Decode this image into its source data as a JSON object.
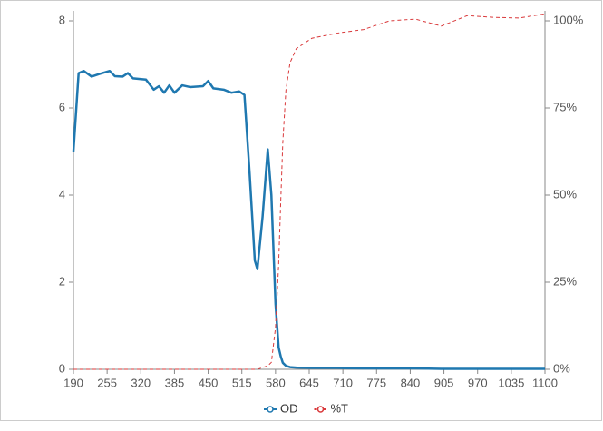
{
  "chart_data": {
    "type": "line",
    "x": [
      190,
      200,
      210,
      225,
      240,
      260,
      270,
      285,
      295,
      305,
      330,
      345,
      355,
      365,
      375,
      385,
      400,
      415,
      440,
      450,
      460,
      480,
      495,
      510,
      520,
      530,
      540,
      545,
      555,
      565,
      572,
      580,
      586,
      590,
      594,
      600,
      608,
      620,
      650,
      700,
      750,
      800,
      850,
      900,
      950,
      1000,
      1050,
      1100
    ],
    "xlim": [
      190,
      1100
    ],
    "xticks": [
      190,
      255,
      320,
      385,
      450,
      515,
      580,
      645,
      710,
      775,
      840,
      905,
      970,
      1035,
      1100
    ],
    "ylim": [
      0,
      8
    ],
    "yticks": [
      0,
      2,
      4,
      6,
      8
    ],
    "y2lim": [
      0,
      100
    ],
    "y2ticks": [
      {
        "value": 0,
        "label": "0%"
      },
      {
        "value": 25,
        "label": "25%"
      },
      {
        "value": 50,
        "label": "50%"
      },
      {
        "value": 75,
        "label": "75%"
      },
      {
        "value": 100,
        "label": "100%"
      }
    ],
    "series": [
      {
        "name": "OD",
        "color": "#1f78b0",
        "dashed": false,
        "values": [
          5.0,
          6.8,
          6.85,
          6.72,
          6.78,
          6.85,
          6.73,
          6.72,
          6.8,
          6.68,
          6.65,
          6.42,
          6.5,
          6.35,
          6.52,
          6.35,
          6.52,
          6.48,
          6.5,
          6.62,
          6.45,
          6.42,
          6.35,
          6.38,
          6.3,
          4.5,
          2.5,
          2.3,
          3.5,
          5.05,
          4.0,
          1.5,
          0.5,
          0.3,
          0.15,
          0.08,
          0.05,
          0.04,
          0.03,
          0.03,
          0.02,
          0.02,
          0.02,
          0.01,
          0.01,
          0.01,
          0.01,
          0.01
        ]
      },
      {
        "name": "%T",
        "color": "#d9383a",
        "dashed": true,
        "axis": "y2",
        "values": [
          0,
          0,
          0,
          0,
          0,
          0,
          0,
          0,
          0,
          0,
          0,
          0,
          0,
          0,
          0,
          0,
          0,
          0,
          0,
          0,
          0,
          0,
          0,
          0,
          0,
          0,
          0,
          0,
          0.5,
          1,
          2,
          12,
          30,
          48,
          65,
          80,
          88,
          92,
          95,
          96.5,
          97.5,
          100,
          100.5,
          98.5,
          101.5,
          101,
          100.8,
          102
        ]
      }
    ]
  }
}
